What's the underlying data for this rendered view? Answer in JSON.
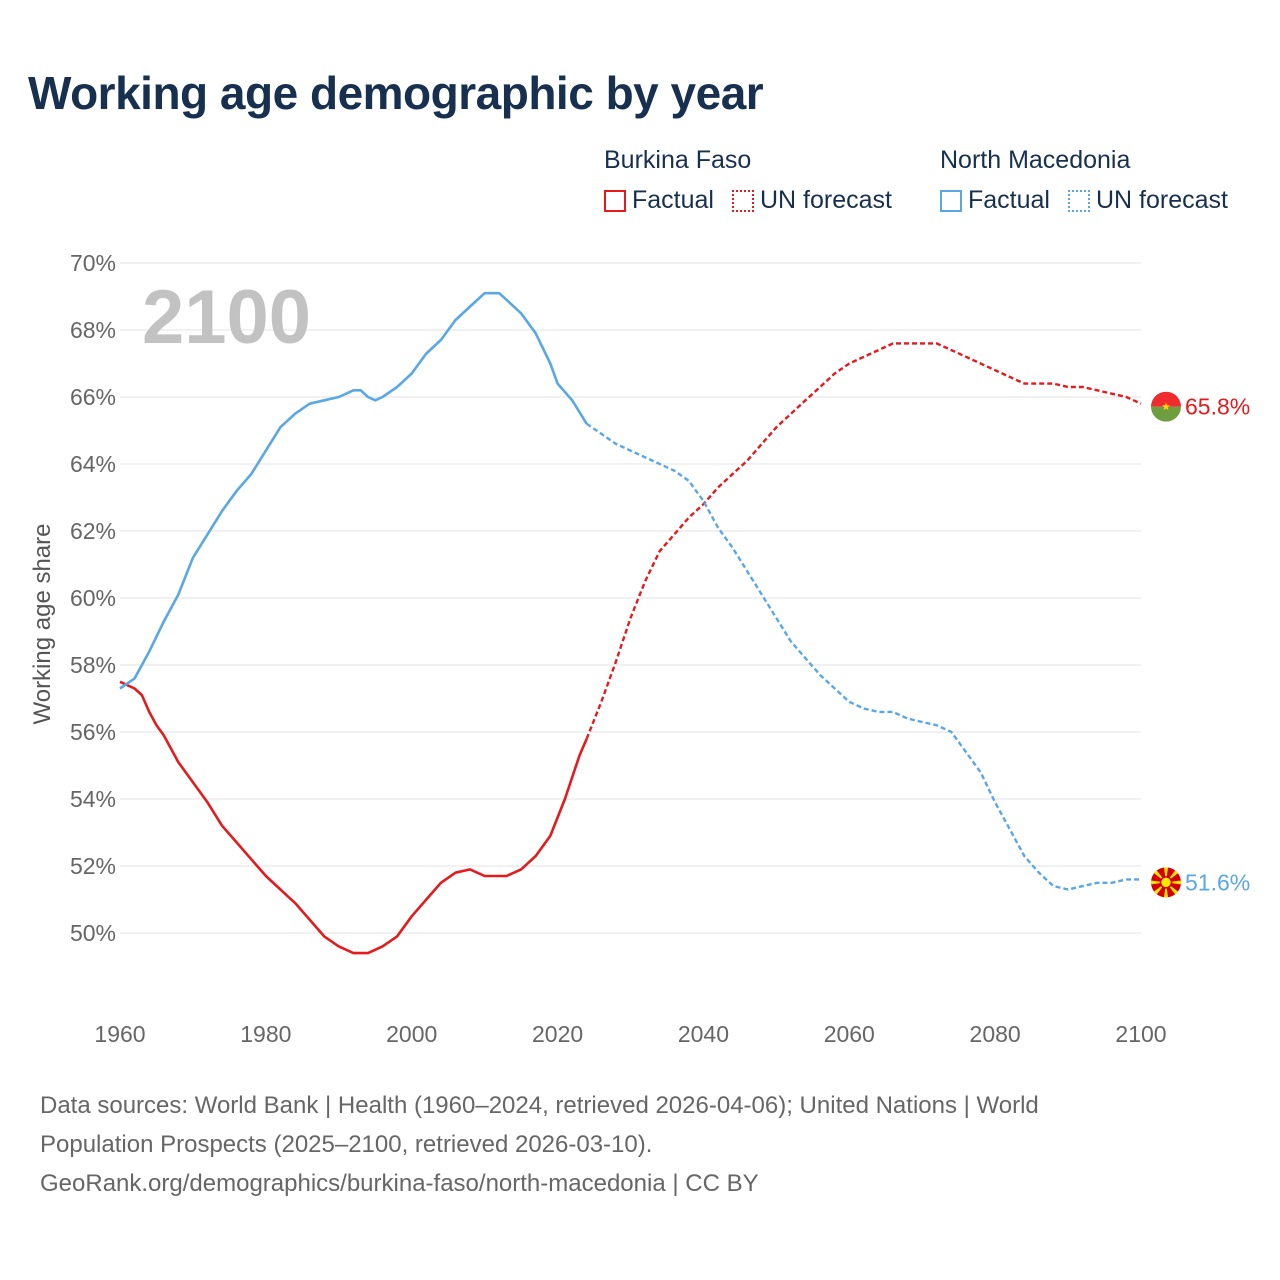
{
  "title": "Working age demographic by year",
  "legend": {
    "groups": [
      {
        "country": "Burkina Faso",
        "factual_label": "Factual",
        "forecast_label": "UN forecast",
        "color": "#e41a1c"
      },
      {
        "country": "North Macedonia",
        "factual_label": "Factual",
        "forecast_label": "UN forecast",
        "color": "#5aa7e6"
      }
    ]
  },
  "footer": {
    "line1": "Data sources: World Bank | Health (1960–2024, retrieved 2026-04-06); United Nations | World",
    "line2": "Population Prospects (2025–2100, retrieved 2026-03-10).",
    "line3": "GeoRank.org/demographics/burkina-faso/north-macedonia | CC BY"
  },
  "chart_data": {
    "type": "line",
    "ylabel": "Working age share",
    "xlabel": "",
    "year_watermark": "2100",
    "xlim": [
      1960,
      2100
    ],
    "ylim": [
      48,
      70
    ],
    "xticks": [
      1960,
      1980,
      2000,
      2020,
      2040,
      2060,
      2080,
      2100
    ],
    "yticks": [
      50,
      52,
      54,
      56,
      58,
      60,
      62,
      64,
      66,
      68,
      70
    ],
    "ytick_suffix": "%",
    "factual_end_year": 2024,
    "grid": true,
    "series": [
      {
        "name": "Burkina Faso",
        "color": "#e41a1c",
        "end_label": "65.8%",
        "flag": "burkina-faso",
        "points": [
          [
            1960,
            57.5
          ],
          [
            1962,
            57.3
          ],
          [
            1963,
            57.1
          ],
          [
            1964,
            56.6
          ],
          [
            1965,
            56.2
          ],
          [
            1966,
            55.9
          ],
          [
            1968,
            55.1
          ],
          [
            1970,
            54.5
          ],
          [
            1972,
            53.9
          ],
          [
            1974,
            53.2
          ],
          [
            1976,
            52.7
          ],
          [
            1978,
            52.2
          ],
          [
            1980,
            51.7
          ],
          [
            1982,
            51.3
          ],
          [
            1984,
            50.9
          ],
          [
            1986,
            50.4
          ],
          [
            1988,
            49.9
          ],
          [
            1990,
            49.6
          ],
          [
            1992,
            49.4
          ],
          [
            1994,
            49.4
          ],
          [
            1996,
            49.6
          ],
          [
            1998,
            49.9
          ],
          [
            2000,
            50.5
          ],
          [
            2002,
            51.0
          ],
          [
            2004,
            51.5
          ],
          [
            2006,
            51.8
          ],
          [
            2008,
            51.9
          ],
          [
            2010,
            51.7
          ],
          [
            2013,
            51.7
          ],
          [
            2015,
            51.9
          ],
          [
            2017,
            52.3
          ],
          [
            2019,
            52.9
          ],
          [
            2021,
            54.0
          ],
          [
            2023,
            55.3
          ],
          [
            2024,
            55.8
          ],
          [
            2026,
            56.9
          ],
          [
            2028,
            58.1
          ],
          [
            2030,
            59.4
          ],
          [
            2032,
            60.5
          ],
          [
            2034,
            61.4
          ],
          [
            2036,
            61.9
          ],
          [
            2038,
            62.4
          ],
          [
            2040,
            62.8
          ],
          [
            2042,
            63.3
          ],
          [
            2044,
            63.7
          ],
          [
            2046,
            64.1
          ],
          [
            2048,
            64.6
          ],
          [
            2050,
            65.1
          ],
          [
            2052,
            65.5
          ],
          [
            2054,
            65.9
          ],
          [
            2056,
            66.3
          ],
          [
            2058,
            66.7
          ],
          [
            2060,
            67.0
          ],
          [
            2062,
            67.2
          ],
          [
            2064,
            67.4
          ],
          [
            2066,
            67.6
          ],
          [
            2068,
            67.6
          ],
          [
            2072,
            67.6
          ],
          [
            2074,
            67.4
          ],
          [
            2076,
            67.2
          ],
          [
            2078,
            67.0
          ],
          [
            2080,
            66.8
          ],
          [
            2082,
            66.6
          ],
          [
            2084,
            66.4
          ],
          [
            2086,
            66.4
          ],
          [
            2088,
            66.4
          ],
          [
            2090,
            66.3
          ],
          [
            2092,
            66.3
          ],
          [
            2094,
            66.2
          ],
          [
            2096,
            66.1
          ],
          [
            2098,
            66.0
          ],
          [
            2100,
            65.8
          ]
        ]
      },
      {
        "name": "North Macedonia",
        "color": "#5aa7e6",
        "end_label": "51.6%",
        "flag": "north-macedonia",
        "points": [
          [
            1960,
            57.3
          ],
          [
            1962,
            57.6
          ],
          [
            1964,
            58.4
          ],
          [
            1966,
            59.3
          ],
          [
            1968,
            60.1
          ],
          [
            1970,
            61.2
          ],
          [
            1972,
            61.9
          ],
          [
            1974,
            62.6
          ],
          [
            1976,
            63.2
          ],
          [
            1978,
            63.7
          ],
          [
            1980,
            64.4
          ],
          [
            1982,
            65.1
          ],
          [
            1984,
            65.5
          ],
          [
            1986,
            65.8
          ],
          [
            1988,
            65.9
          ],
          [
            1990,
            66.0
          ],
          [
            1992,
            66.2
          ],
          [
            1993,
            66.2
          ],
          [
            1994,
            66.0
          ],
          [
            1995,
            65.9
          ],
          [
            1996,
            66.0
          ],
          [
            1998,
            66.3
          ],
          [
            2000,
            66.7
          ],
          [
            2002,
            67.3
          ],
          [
            2004,
            67.7
          ],
          [
            2006,
            68.3
          ],
          [
            2008,
            68.7
          ],
          [
            2010,
            69.1
          ],
          [
            2012,
            69.1
          ],
          [
            2013,
            68.9
          ],
          [
            2015,
            68.5
          ],
          [
            2017,
            67.9
          ],
          [
            2019,
            67.0
          ],
          [
            2020,
            66.4
          ],
          [
            2022,
            65.9
          ],
          [
            2024,
            65.2
          ],
          [
            2026,
            64.9
          ],
          [
            2028,
            64.6
          ],
          [
            2030,
            64.4
          ],
          [
            2032,
            64.2
          ],
          [
            2034,
            64.0
          ],
          [
            2036,
            63.8
          ],
          [
            2038,
            63.5
          ],
          [
            2040,
            62.9
          ],
          [
            2042,
            62.1
          ],
          [
            2044,
            61.5
          ],
          [
            2046,
            60.8
          ],
          [
            2048,
            60.1
          ],
          [
            2050,
            59.4
          ],
          [
            2052,
            58.7
          ],
          [
            2054,
            58.2
          ],
          [
            2056,
            57.7
          ],
          [
            2058,
            57.3
          ],
          [
            2060,
            56.9
          ],
          [
            2062,
            56.7
          ],
          [
            2064,
            56.6
          ],
          [
            2066,
            56.6
          ],
          [
            2068,
            56.4
          ],
          [
            2070,
            56.3
          ],
          [
            2072,
            56.2
          ],
          [
            2074,
            56.0
          ],
          [
            2076,
            55.4
          ],
          [
            2078,
            54.8
          ],
          [
            2080,
            53.9
          ],
          [
            2082,
            53.1
          ],
          [
            2084,
            52.3
          ],
          [
            2086,
            51.8
          ],
          [
            2088,
            51.4
          ],
          [
            2090,
            51.3
          ],
          [
            2092,
            51.4
          ],
          [
            2094,
            51.5
          ],
          [
            2096,
            51.5
          ],
          [
            2098,
            51.6
          ],
          [
            2100,
            51.6
          ]
        ]
      }
    ]
  }
}
